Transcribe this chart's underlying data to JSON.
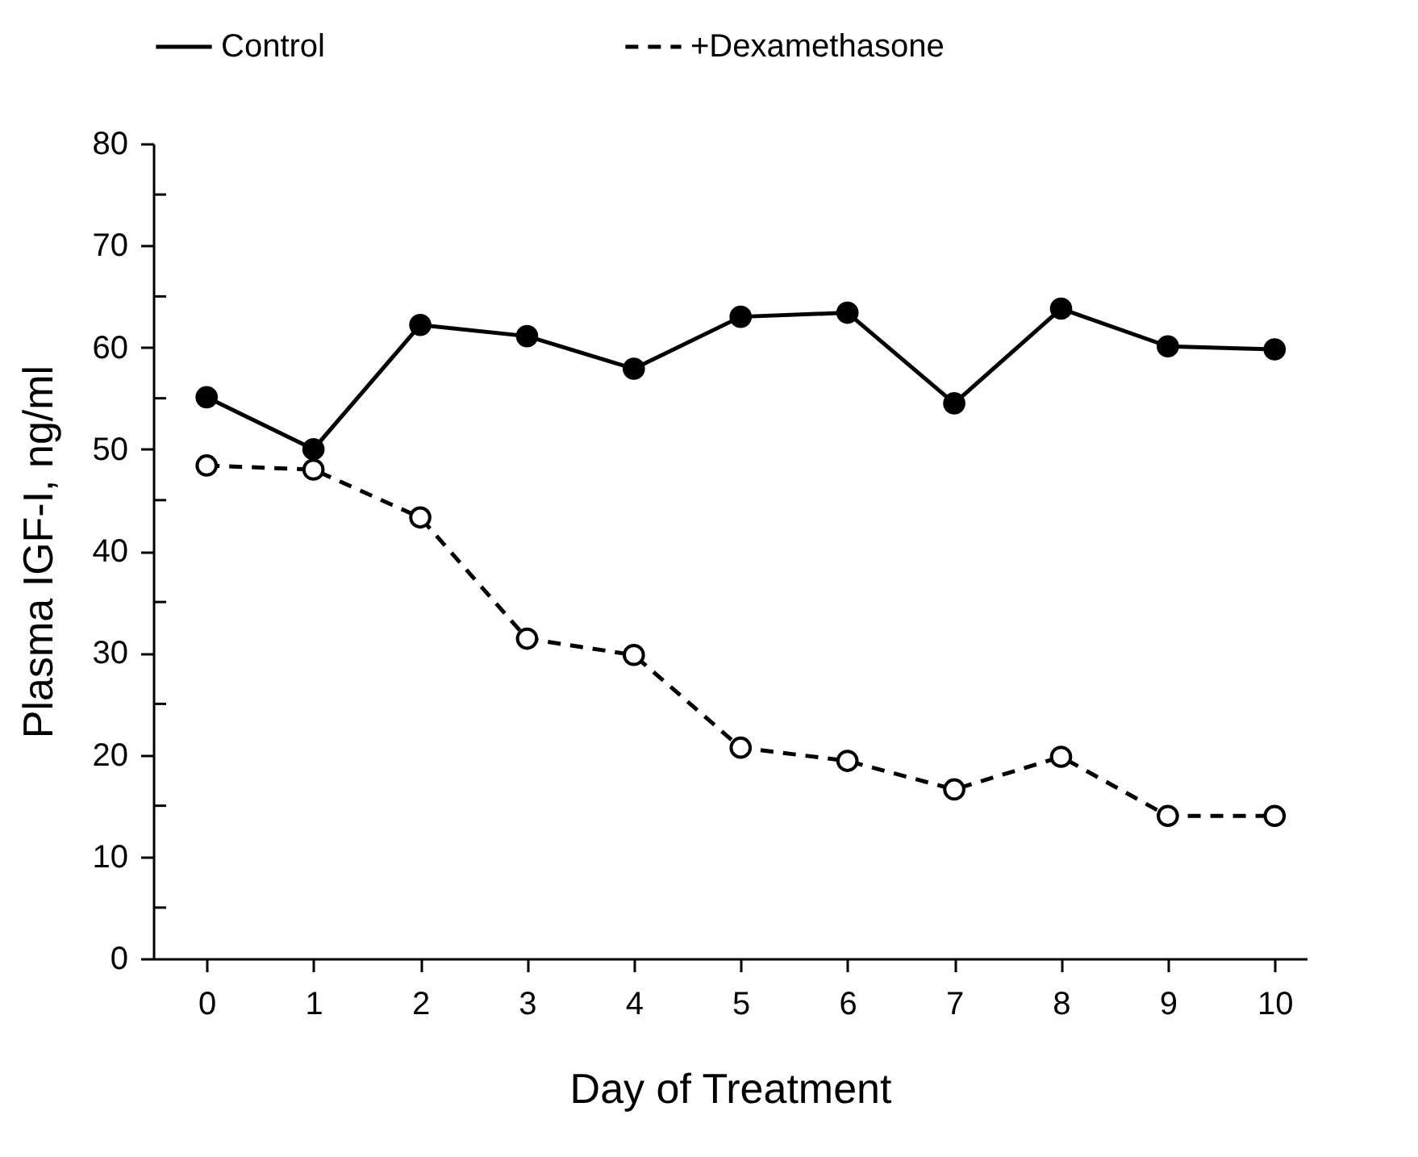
{
  "chart_data": {
    "type": "line",
    "xlabel": "Day of Treatment",
    "ylabel": "Plasma IGF-I, ng/ml",
    "x": [
      0,
      1,
      2,
      3,
      4,
      5,
      6,
      7,
      8,
      9,
      10
    ],
    "series": [
      {
        "name": "Control",
        "color": "#000000",
        "line_style": "solid",
        "values": [
          55.1,
          50,
          62.2,
          61.1,
          57.9,
          63,
          63.4,
          54.5,
          63.8,
          60.1,
          59.8
        ]
      },
      {
        "name": "+Dexamethasone",
        "color": "#000000",
        "line_style": "dashed",
        "values": [
          48.4,
          48,
          43.3,
          31.4,
          29.8,
          20.7,
          19.4,
          16.6,
          19.8,
          14,
          14
        ]
      }
    ],
    "xlim": [
      -0.5,
      10.3
    ],
    "xticks": [
      0,
      1,
      2,
      3,
      4,
      5,
      6,
      7,
      8,
      9,
      10
    ],
    "ylim": [
      0,
      80
    ],
    "yticks": [
      0,
      {
        "value": 5,
        "label": null
      },
      10,
      {
        "value": 15,
        "label": null
      },
      20,
      {
        "value": 25,
        "label": null
      },
      30,
      {
        "value": 35,
        "label": null
      },
      40,
      {
        "value": 45,
        "label": null
      },
      50,
      {
        "value": 55,
        "label": null
      },
      60,
      {
        "value": 65,
        "label": null
      },
      70,
      {
        "value": 75,
        "label": null
      },
      80
    ],
    "marker": "circle",
    "grid": false,
    "legend": "top"
  }
}
